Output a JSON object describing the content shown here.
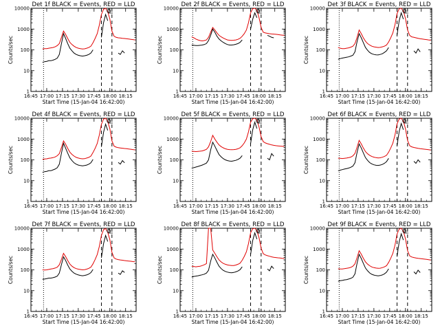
{
  "chart_data": {
    "type": "line",
    "y_scale": "log",
    "ylim": [
      1,
      10000
    ],
    "y_ticks": [
      "1",
      "10",
      "100",
      "1000",
      "10000"
    ],
    "x_tick_labels": [
      "16:45",
      "17:00",
      "17:15",
      "17:30",
      "17:45",
      "18:00",
      "18:15"
    ],
    "xlabel": "Start Time (15-Jan-04 16:42:00)",
    "ylabel": "Counts/sec",
    "grid": false,
    "colors": {
      "events": "#000000",
      "lld": "#e00000"
    },
    "times": [
      "16:56",
      "16:58",
      "17:00",
      "17:02",
      "17:04",
      "17:06",
      "17:08",
      "17:10",
      "17:12",
      "17:14",
      "17:16",
      "17:18",
      "17:20",
      "17:22",
      "17:24",
      "17:26",
      "17:28",
      "17:30",
      "17:32",
      "17:34",
      "17:36",
      "17:38",
      "17:40",
      "17:42",
      "17:44",
      "17:46",
      "17:48",
      "17:50",
      "17:52",
      "17:54",
      "17:56",
      "17:58",
      "18:00",
      "18:02",
      "18:04",
      "18:06",
      "18:08",
      "18:10",
      "18:12",
      "18:14",
      "18:16",
      "18:18",
      "18:20",
      "18:22",
      "18:24"
    ],
    "panels": [
      {
        "title": "Det 1f BLACK = Events, RED = LLD",
        "events": [
          25,
          27,
          28,
          30,
          30,
          32,
          35,
          40,
          60,
          200,
          600,
          350,
          200,
          120,
          90,
          70,
          60,
          55,
          52,
          50,
          52,
          55,
          60,
          70,
          100,
          null,
          null,
          null,
          400,
          2000,
          5000,
          2500,
          null,
          null,
          null,
          null,
          70,
          60,
          90,
          70,
          null,
          null,
          null,
          null,
          null
        ],
        "lld": [
          110,
          115,
          115,
          120,
          125,
          130,
          140,
          160,
          200,
          400,
          800,
          550,
          350,
          230,
          180,
          150,
          130,
          120,
          115,
          110,
          112,
          120,
          130,
          150,
          220,
          350,
          600,
          1500,
          5000,
          9000,
          10000,
          7000,
          3000,
          800,
          450,
          400,
          380,
          370,
          360,
          350,
          340,
          330,
          320,
          310,
          300
        ]
      },
      {
        "title": "Det 2f BLACK = Events, RED = LLD",
        "events": [
          170,
          165,
          160,
          160,
          165,
          170,
          180,
          200,
          280,
          500,
          1000,
          700,
          450,
          330,
          270,
          230,
          200,
          180,
          170,
          170,
          175,
          185,
          200,
          230,
          300,
          null,
          null,
          null,
          1000,
          3000,
          6000,
          3500,
          null,
          null,
          null,
          null,
          500,
          450,
          400,
          380,
          null,
          null,
          null,
          null,
          null
        ],
        "lld": [
          420,
          380,
          330,
          300,
          280,
          270,
          280,
          300,
          400,
          700,
          1200,
          900,
          650,
          500,
          420,
          370,
          330,
          300,
          290,
          285,
          290,
          300,
          320,
          360,
          450,
          600,
          900,
          2000,
          6000,
          9500,
          10000,
          8000,
          3500,
          1200,
          700,
          650,
          620,
          600,
          580,
          570,
          560,
          540,
          520,
          510,
          500
        ]
      },
      {
        "title": "Det 3f BLACK = Events, RED = LLD",
        "events": [
          35,
          38,
          40,
          42,
          44,
          46,
          50,
          55,
          80,
          250,
          600,
          380,
          220,
          130,
          95,
          75,
          65,
          60,
          58,
          57,
          60,
          65,
          75,
          90,
          130,
          null,
          null,
          null,
          500,
          2500,
          6000,
          3000,
          null,
          null,
          null,
          null,
          90,
          70,
          110,
          80,
          null,
          null,
          null,
          null,
          null
        ],
        "lld": [
          130,
          120,
          115,
          115,
          120,
          125,
          135,
          150,
          200,
          400,
          900,
          600,
          380,
          260,
          200,
          170,
          150,
          140,
          135,
          130,
          132,
          140,
          150,
          170,
          240,
          380,
          650,
          1600,
          5500,
          9500,
          10000,
          7500,
          3200,
          900,
          500,
          420,
          400,
          380,
          360,
          340,
          330,
          320,
          310,
          300,
          290
        ]
      },
      {
        "title": "Det 4f BLACK = Events, RED = LLD",
        "events": [
          25,
          27,
          28,
          30,
          30,
          33,
          36,
          42,
          62,
          210,
          620,
          360,
          210,
          125,
          92,
          72,
          62,
          56,
          53,
          51,
          53,
          56,
          62,
          72,
          105,
          null,
          null,
          null,
          420,
          2100,
          5200,
          2600,
          null,
          null,
          null,
          null,
          75,
          62,
          92,
          72,
          null,
          null,
          null,
          null,
          null
        ],
        "lld": [
          105,
          110,
          112,
          118,
          122,
          128,
          138,
          158,
          198,
          390,
          820,
          560,
          355,
          235,
          182,
          152,
          132,
          122,
          116,
          112,
          114,
          122,
          132,
          152,
          225,
          355,
          610,
          1520,
          5100,
          9100,
          10000,
          7100,
          3100,
          820,
          460,
          410,
          385,
          372,
          362,
          352,
          342,
          332,
          322,
          312,
          302
        ]
      },
      {
        "title": "Det 5f BLACK = Events, RED = LLD",
        "events": [
          40,
          42,
          45,
          48,
          52,
          56,
          62,
          70,
          100,
          300,
          700,
          450,
          280,
          180,
          140,
          115,
          100,
          92,
          88,
          86,
          90,
          95,
          105,
          120,
          160,
          null,
          null,
          null,
          600,
          2800,
          6500,
          3200,
          null,
          null,
          null,
          null,
          120,
          100,
          200,
          150,
          null,
          null,
          null,
          null,
          null
        ],
        "lld": [
          260,
          255,
          250,
          255,
          260,
          270,
          290,
          320,
          420,
          750,
          1500,
          1000,
          700,
          520,
          430,
          380,
          340,
          320,
          310,
          305,
          310,
          320,
          340,
          380,
          480,
          650,
          1000,
          2200,
          6500,
          9500,
          10000,
          8200,
          3800,
          1300,
          750,
          650,
          600,
          560,
          520,
          500,
          480,
          470,
          460,
          450,
          440
        ]
      },
      {
        "title": "Det 6f BLACK = Events, RED = LLD",
        "events": [
          30,
          32,
          34,
          36,
          38,
          40,
          44,
          50,
          72,
          230,
          580,
          370,
          215,
          128,
          94,
          74,
          64,
          58,
          55,
          54,
          56,
          60,
          68,
          82,
          118,
          null,
          null,
          null,
          460,
          2300,
          5600,
          2800,
          null,
          null,
          null,
          null,
          85,
          68,
          100,
          76,
          null,
          null,
          null,
          null,
          null
        ],
        "lld": [
          120,
          118,
          116,
          118,
          122,
          128,
          136,
          155,
          205,
          410,
          860,
          580,
          370,
          250,
          195,
          165,
          145,
          135,
          128,
          124,
          126,
          134,
          145,
          165,
          235,
          370,
          630,
          1550,
          5300,
          9300,
          10000,
          7300,
          3100,
          860,
          480,
          420,
          395,
          375,
          360,
          345,
          335,
          325,
          315,
          305,
          295
        ]
      },
      {
        "title": "Det 7f BLACK = Events, RED = LLD",
        "events": [
          35,
          36,
          38,
          40,
          40,
          42,
          45,
          50,
          70,
          180,
          420,
          280,
          170,
          110,
          85,
          70,
          62,
          57,
          54,
          52,
          54,
          57,
          63,
          74,
          105,
          null,
          null,
          null,
          380,
          1800,
          4500,
          2300,
          null,
          null,
          null,
          null,
          70,
          60,
          90,
          75,
          null,
          null,
          null,
          null,
          null
        ],
        "lld": [
          100,
          98,
          100,
          105,
          110,
          115,
          122,
          135,
          175,
          320,
          620,
          430,
          280,
          190,
          150,
          128,
          115,
          108,
          104,
          100,
          102,
          108,
          118,
          135,
          195,
          310,
          540,
          1300,
          4500,
          8500,
          9800,
          6500,
          2800,
          700,
          380,
          330,
          310,
          300,
          290,
          280,
          272,
          265,
          258,
          250,
          245
        ]
      },
      {
        "title": "Det 8f BLACK = Events, RED = LLD",
        "events": [
          45,
          48,
          50,
          52,
          55,
          58,
          62,
          70,
          95,
          260,
          560,
          370,
          230,
          150,
          115,
          95,
          84,
          78,
          74,
          72,
          75,
          80,
          88,
          102,
          140,
          null,
          null,
          null,
          540,
          2600,
          6000,
          3000,
          null,
          null,
          null,
          null,
          110,
          90,
          150,
          115,
          null,
          null,
          null,
          null,
          null
        ],
        "lld": [
          150,
          145,
          140,
          145,
          150,
          160,
          175,
          200,
          10000,
          10000,
          900,
          620,
          420,
          300,
          240,
          205,
          185,
          172,
          165,
          160,
          162,
          170,
          185,
          210,
          290,
          440,
          740,
          1800,
          6000,
          9500,
          10000,
          7800,
          3500,
          1100,
          600,
          520,
          480,
          450,
          420,
          400,
          390,
          380,
          370,
          360,
          350
        ]
      },
      {
        "title": "Det 9f BLACK = Events, RED = LLD",
        "events": [
          28,
          30,
          31,
          33,
          34,
          36,
          39,
          44,
          64,
          210,
          560,
          350,
          205,
          122,
          90,
          71,
          61,
          56,
          53,
          51,
          53,
          57,
          64,
          77,
          112,
          null,
          null,
          null,
          430,
          2200,
          5400,
          2700,
          null,
          null,
          null,
          null,
          80,
          64,
          96,
          74,
          null,
          null,
          null,
          null,
          null
        ],
        "lld": [
          112,
          110,
          110,
          114,
          118,
          124,
          132,
          150,
          195,
          390,
          830,
          565,
          360,
          242,
          188,
          158,
          138,
          128,
          122,
          118,
          120,
          128,
          139,
          158,
          228,
          360,
          615,
          1530,
          5200,
          9200,
          10000,
          7200,
          3100,
          840,
          470,
          415,
          390,
          374,
          360,
          348,
          338,
          328,
          318,
          308,
          298
        ]
      }
    ]
  }
}
